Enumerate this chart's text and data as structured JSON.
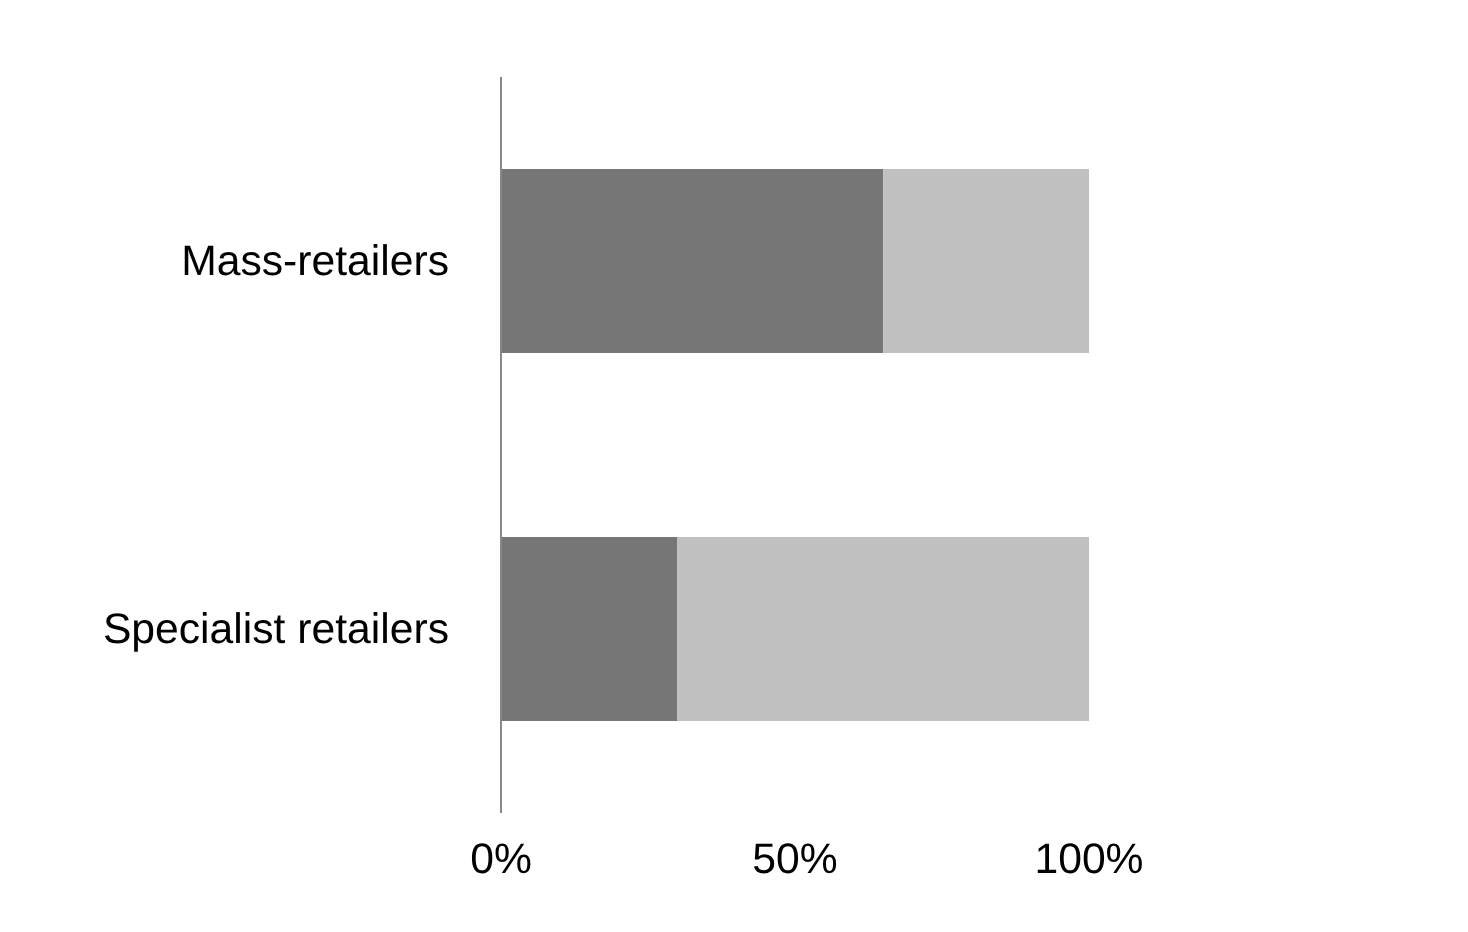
{
  "chart_data": {
    "type": "bar",
    "orientation": "horizontal",
    "stacked": true,
    "categories": [
      "Mass-retailers",
      "Specialist retailers"
    ],
    "series": [
      {
        "color": "#767676",
        "values": [
          65,
          30
        ]
      },
      {
        "color": "#c0c0c0",
        "values": [
          35,
          70
        ]
      }
    ],
    "xlim": [
      0,
      100
    ],
    "xticks": [
      {
        "value": 0,
        "label": "0%"
      },
      {
        "value": 50,
        "label": "50%"
      },
      {
        "value": 100,
        "label": "100%"
      }
    ],
    "grid": false
  }
}
